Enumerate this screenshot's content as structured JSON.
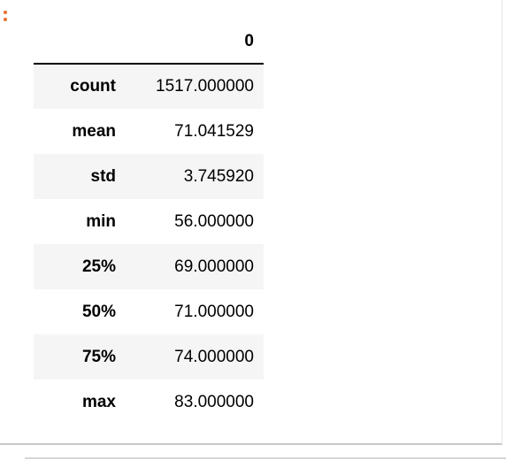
{
  "table": {
    "column_header": "0",
    "rows": [
      {
        "label": "count",
        "value": "1517.000000"
      },
      {
        "label": "mean",
        "value": "71.041529"
      },
      {
        "label": "std",
        "value": "3.745920"
      },
      {
        "label": "min",
        "value": "56.000000"
      },
      {
        "label": "25%",
        "value": "69.000000"
      },
      {
        "label": "50%",
        "value": "71.000000"
      },
      {
        "label": "75%",
        "value": "74.000000"
      },
      {
        "label": "max",
        "value": "83.000000"
      }
    ]
  },
  "colors": {
    "prompt_accent": "#e8702a",
    "stripe": "#f5f5f5"
  }
}
